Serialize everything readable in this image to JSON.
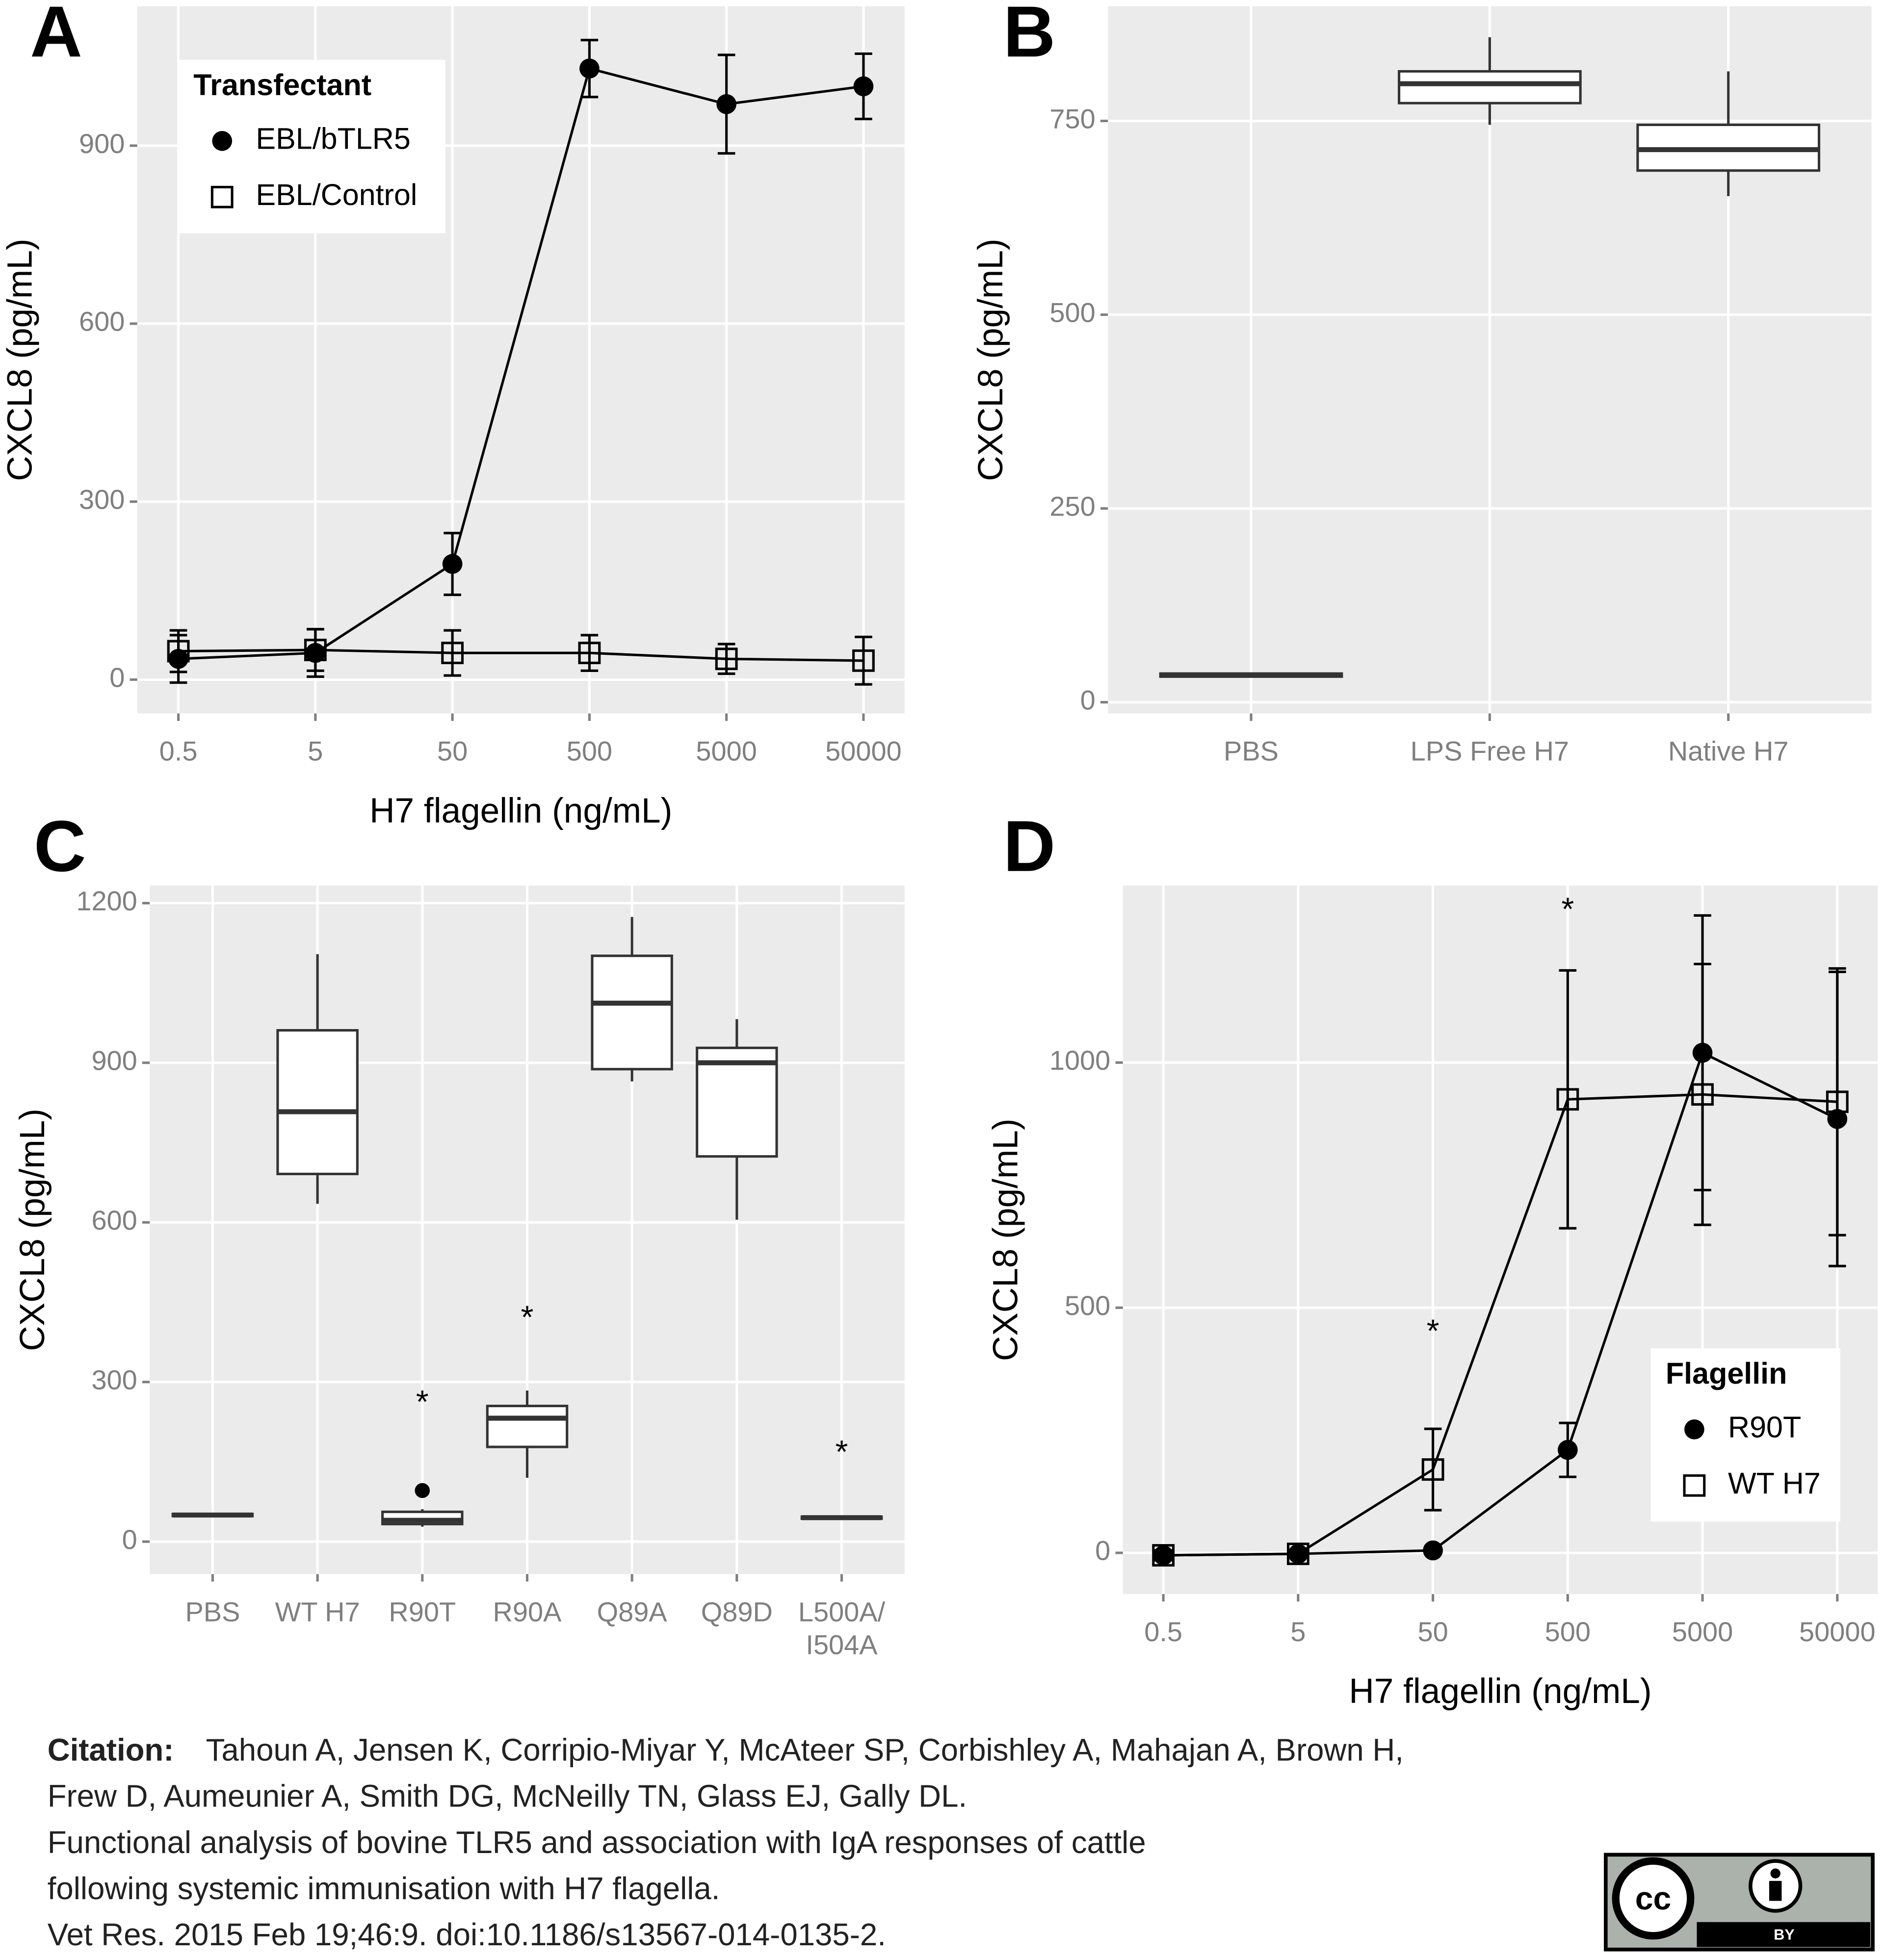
{
  "chart_data": [
    {
      "type": "line",
      "panel": "A",
      "xlabel": "H7 flagellin (ng/mL)",
      "ylabel": "CXCL8 (pg/mL)",
      "categories": [
        "0.5",
        "5",
        "50",
        "500",
        "5000",
        "50000"
      ],
      "ylim": [
        -57,
        1135
      ],
      "yticks": [
        0,
        300,
        600,
        900
      ],
      "grid": true,
      "legend_title": "Transfectant",
      "legend": "top-left",
      "series": [
        {
          "name": "EBL/bTLR5",
          "color": "#000000",
          "marker": "circle",
          "values": [
            35,
            45,
            195,
            1030,
            970,
            1000
          ],
          "errors": [
            40,
            40,
            52,
            48,
            83,
            55
          ]
        },
        {
          "name": "EBL/Control",
          "color": "#000000",
          "marker": "square",
          "values": [
            48,
            50,
            45,
            45,
            35,
            32
          ],
          "errors": [
            35,
            35,
            38,
            30,
            25,
            40
          ]
        }
      ]
    },
    {
      "type": "box",
      "panel": "B",
      "ylabel": "CXCL8 (pg/mL)",
      "categories": [
        "PBS",
        "LPS Free H7",
        "Native H7"
      ],
      "ylim": [
        -14.5,
        898
      ],
      "yticks": [
        0,
        250,
        500,
        750
      ],
      "grid": true,
      "min": [
        32,
        745,
        653
      ],
      "q1": [
        33,
        773,
        686
      ],
      "median": [
        35,
        798,
        713
      ],
      "q3": [
        37,
        814,
        745
      ],
      "max": [
        38,
        858,
        814
      ]
    },
    {
      "type": "box",
      "panel": "C",
      "ylabel": "CXCL8 (pg/mL)",
      "categories": [
        "PBS",
        "WT H7",
        "R90T",
        "R90A",
        "Q89A",
        "Q89D",
        "L500A/\nI504A"
      ],
      "ylim": [
        -61,
        1233
      ],
      "yticks": [
        0,
        300,
        600,
        900,
        1200
      ],
      "grid": true,
      "min": [
        46,
        635,
        28,
        120,
        865,
        605,
        42
      ],
      "q1": [
        48,
        691,
        33,
        178,
        888,
        724,
        43
      ],
      "median": [
        50,
        808,
        40,
        232,
        1012,
        900,
        45
      ],
      "q3": [
        52,
        961,
        56,
        255,
        1101,
        928,
        47
      ],
      "max": [
        54,
        1104,
        61,
        284,
        1174,
        982,
        48
      ],
      "outliers": [
        [],
        [],
        [
          96
        ],
        [],
        [],
        [],
        []
      ],
      "annotations": [
        {
          "label": "*",
          "category": "R90T",
          "y": 272
        },
        {
          "label": "*",
          "category": "R90A",
          "y": 431
        },
        {
          "label": "*",
          "category": "L500A/\nI504A",
          "y": 178
        }
      ]
    },
    {
      "type": "line",
      "panel": "D",
      "xlabel": "H7 flagellin (ng/mL)",
      "ylabel": "CXCL8 (pg/mL)",
      "categories": [
        "0.5",
        "5",
        "50",
        "500",
        "5000",
        "50000"
      ],
      "ylim": [
        -84,
        1361
      ],
      "yticks": [
        0,
        500,
        1000
      ],
      "grid": true,
      "legend_title": "Flagellin",
      "legend": "bottom-right",
      "series": [
        {
          "name": "R90T",
          "color": "#000000",
          "marker": "circle",
          "values": [
            -5,
            -2,
            5,
            210,
            1020,
            885
          ],
          "errors": [
            10,
            8,
            8,
            55,
            280,
            300
          ]
        },
        {
          "name": "WT H7",
          "color": "#000000",
          "marker": "square",
          "values": [
            -5,
            -2,
            170,
            925,
            935,
            920
          ],
          "errors": [
            10,
            8,
            83,
            263,
            266,
            272
          ]
        }
      ],
      "annotations": [
        {
          "label": "*",
          "category": "50",
          "y": 463
        },
        {
          "label": "*",
          "category": "500",
          "y": 1323
        }
      ]
    }
  ],
  "citation": {
    "label": "Citation:",
    "lines": [
      "Tahoun A, Jensen K, Corripio-Miyar Y, McAteer SP, Corbishley A, Mahajan A, Brown H,",
      "Frew D, Aumeunier A, Smith DG, McNeilly TN, Glass EJ, Gally DL.",
      "Functional analysis of bovine TLR5 and association with IgA responses of cattle",
      "following systemic immunisation with H7 flagella.",
      "Vet Res. 2015 Feb 19;46:9. doi:10.1186/s13567-014-0135-2."
    ]
  },
  "license": {
    "cc": "cc",
    "by": "BY"
  }
}
